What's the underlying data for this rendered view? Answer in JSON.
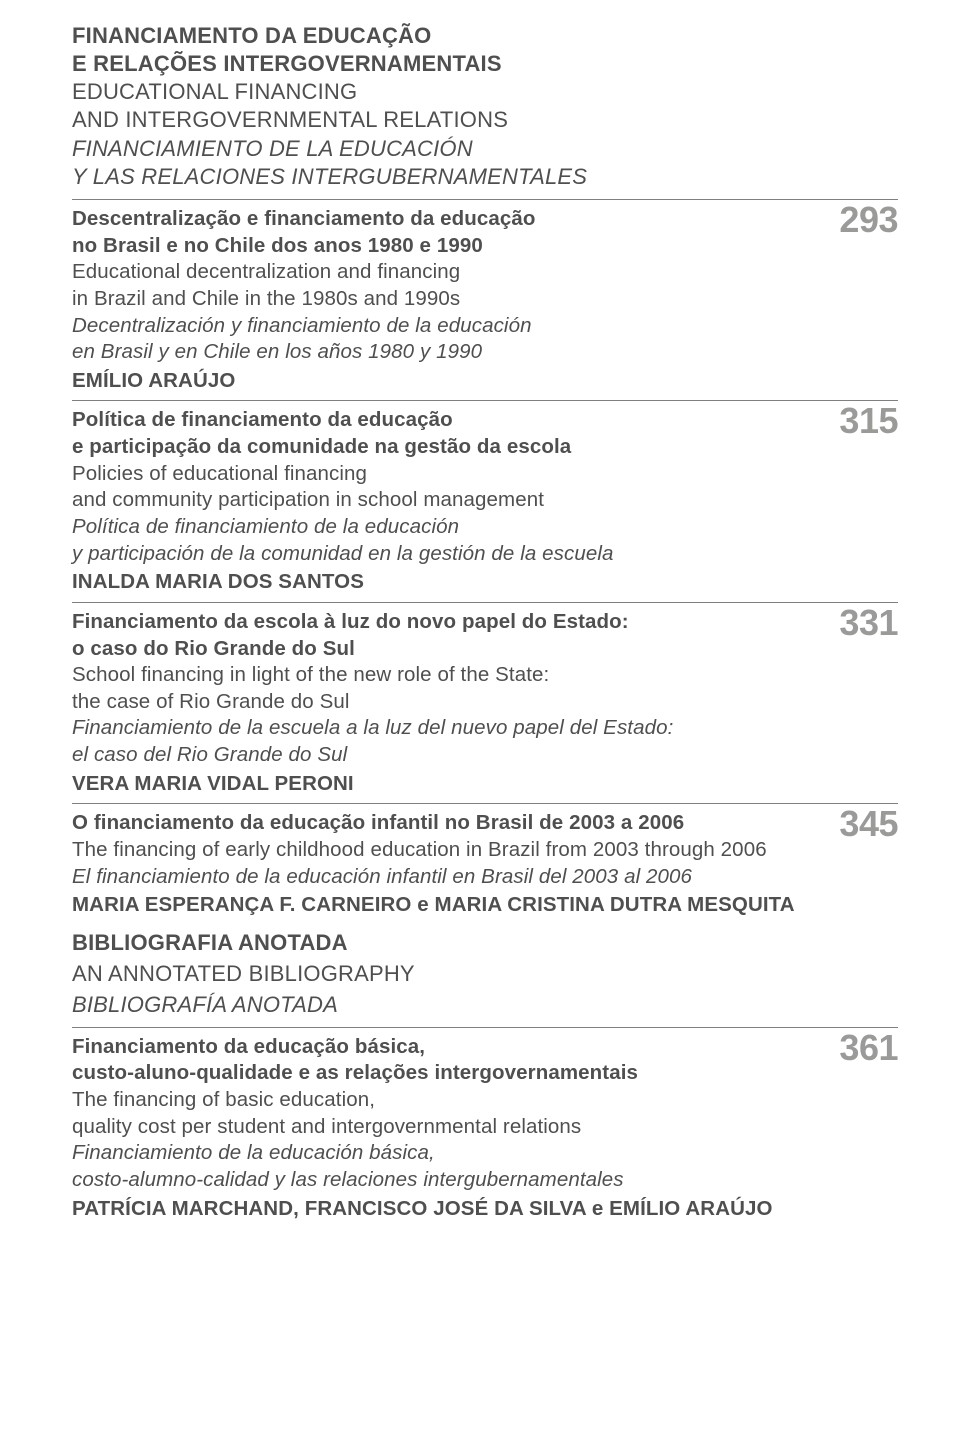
{
  "section_header": {
    "pt1": "FINANCIAMENTO DA EDUCAÇÃO",
    "pt2": "E RELAÇÕES INTERGOVERNAMENTAIS",
    "en1": "EDUCATIONAL FINANCING",
    "en2": "AND INTERGOVERNMENTAL RELATIONS",
    "es1": "FINANCIAMIENTO DE LA EDUCACIÓN",
    "es2": "Y LAS RELACIONES INTERGUBERNAMENTALES"
  },
  "entries": [
    {
      "page": "293",
      "pt1": "Descentralização e financiamento da educação",
      "pt2": "no Brasil e no Chile dos anos 1980 e 1990",
      "en1": "Educational decentralization and financing",
      "en2": "in Brazil and Chile in the 1980s and 1990s",
      "es1": "Decentralización y financiamiento de la educación",
      "es2": "en Brasil y en Chile en los años 1980 y 1990",
      "author": "EMÍLIO ARAÚJO"
    },
    {
      "page": "315",
      "pt1": "Política de financiamento da educação",
      "pt2": "e participação da comunidade na gestão da escola",
      "en1": "Policies of educational financing",
      "en2": "and community participation in school management",
      "es1": "Política de financiamiento de la educación",
      "es2": "y participación de la comunidad en la gestión de la escuela",
      "author": "INALDA MARIA DOS SANTOS"
    },
    {
      "page": "331",
      "pt1": "Financiamento da escola à luz do novo papel do Estado:",
      "pt2": "o caso do Rio Grande do Sul",
      "en1": "School financing in light of the new role of the State:",
      "en2": "the case of Rio Grande do Sul",
      "es1": "Financiamiento de la escuela a la luz del nuevo papel del Estado:",
      "es2": "el caso del Rio Grande do Sul",
      "author": "VERA MARIA VIDAL PERONI"
    },
    {
      "page": "345",
      "pt1": "O financiamento da educação infantil no Brasil de 2003 a 2006",
      "en1": "The financing of early childhood education in Brazil from 2003 through 2006",
      "es1": "El financiamiento de la educación infantil en Brasil del 2003 al 2006",
      "author": "MARIA ESPERANÇA F. CARNEIRO e MARIA CRISTINA DUTRA MESQUITA"
    }
  ],
  "biblio_header": {
    "pt": "BIBLIOGRAFIA ANOTADA",
    "en": "AN ANNOTATED BIBLIOGRAPHY",
    "es": "BIBLIOGRAFÍA ANOTADA"
  },
  "biblio_entry": {
    "page": "361",
    "pt1": "Financiamento da educação básica,",
    "pt2": "custo-aluno-qualidade e as relações intergovernamentais",
    "en1": "The financing of basic education,",
    "en2": "quality cost per student and intergovernmental relations",
    "es1": "Financiamiento de la educación básica,",
    "es2": "costo-alumno-calidad y las relaciones intergubernamentales",
    "author": "PATRÍCIA MARCHAND, FRANCISCO JOSÉ DA SILVA e EMÍLIO ARAÚJO"
  }
}
